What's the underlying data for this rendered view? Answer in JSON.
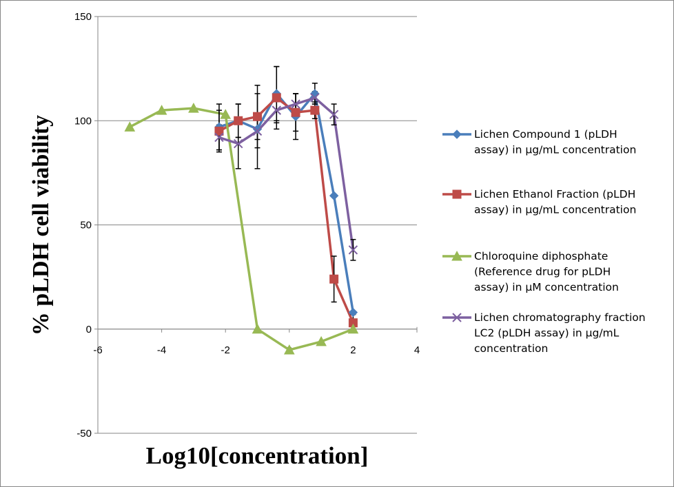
{
  "chart_data": {
    "type": "line",
    "title": "",
    "xlabel": "Log10[concentration]",
    "ylabel": "% pLDH cell viability",
    "xlim": [
      -6,
      4
    ],
    "ylim": [
      -50,
      150
    ],
    "xticks": [
      "-6",
      "-4",
      "-2",
      "0",
      "2",
      "4"
    ],
    "yticks": [
      "150",
      "100",
      "50",
      "0",
      "-50"
    ],
    "grid": "horizontal",
    "legend_position": "right",
    "series": [
      {
        "name": "Lichen Compound 1 (pLDH assay) in µg/mL concentration",
        "legend_lines": [
          "Lichen Compound 1 (pLDH",
          "assay) in µg/mL concentration"
        ],
        "color": "#4a7ebb",
        "marker": "diamond",
        "x": [
          -2.2,
          -1.6,
          -1.0,
          -0.4,
          0.2,
          0.8,
          1.4,
          2.0
        ],
        "y": [
          97,
          100,
          96,
          113,
          102,
          113,
          64,
          8
        ],
        "err": [
          11,
          8,
          5,
          13,
          11,
          5,
          0,
          0
        ]
      },
      {
        "name": "Lichen Ethanol Fraction (pLDH assay) in µg/mL concentration",
        "legend_lines": [
          "Lichen Ethanol Fraction (pLDH",
          "assay) in µg/mL concentration"
        ],
        "color": "#be4b48",
        "marker": "square",
        "x": [
          -2.2,
          -1.6,
          -1.0,
          -0.4,
          0.2,
          0.8,
          1.4,
          2.0
        ],
        "y": [
          95,
          100,
          102,
          111,
          104,
          105,
          24,
          3
        ],
        "err": [
          10,
          8,
          15,
          15,
          9,
          4,
          11,
          4
        ]
      },
      {
        "name": "Chloroquine diphosphate (Reference drug for pLDH assay) in µM concentration",
        "legend_lines": [
          "Chloroquine diphosphate",
          "(Reference drug for pLDH",
          "assay) in µM concentration"
        ],
        "color": "#98b954",
        "marker": "triangle",
        "x": [
          -5,
          -4,
          -3,
          -2,
          -1,
          0,
          1,
          2
        ],
        "y": [
          97,
          105,
          106,
          103,
          0,
          -10,
          -6,
          0
        ],
        "err": [
          0,
          0,
          0,
          0,
          0,
          0,
          0,
          0
        ]
      },
      {
        "name": "Lichen chromatography fraction LC2 (pLDH assay) in µg/mL concentration",
        "legend_lines": [
          "Lichen chromatography fraction",
          "LC2 (pLDH assay) in µg/mL",
          "concentration"
        ],
        "color": "#7d60a0",
        "marker": "x",
        "x": [
          -2.2,
          -1.6,
          -1.0,
          -0.4,
          0.2,
          0.8,
          1.4,
          2.0
        ],
        "y": [
          92,
          89,
          95,
          105,
          108,
          111,
          103,
          38
        ],
        "err": [
          6,
          12,
          18,
          6,
          5,
          3,
          5,
          5
        ]
      }
    ]
  }
}
